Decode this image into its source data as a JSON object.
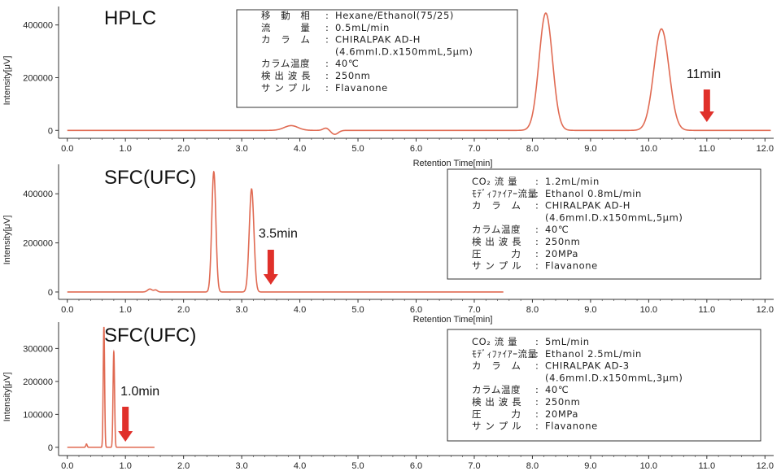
{
  "colors": {
    "trace": "#e06a52",
    "arrow": "#e0302a",
    "axis": "#333333",
    "box": "#333333"
  },
  "chart_data": [
    {
      "type": "line",
      "title": "HPLC",
      "xlabel": "Retention Time[min]",
      "ylabel": "Intensity[μV]",
      "xlim": [
        -0.15,
        12.15
      ],
      "ylim": [
        -30000,
        470000
      ],
      "xticks": [
        "0.0",
        "1.0",
        "2.0",
        "3.0",
        "4.0",
        "5.0",
        "6.0",
        "7.0",
        "8.0",
        "9.0",
        "10.0",
        "11.0",
        "12.0"
      ],
      "yticks": [
        "0",
        "200000",
        "400000"
      ],
      "baseline": 0,
      "x_end": 12.1,
      "peaks": [
        {
          "t": 3.85,
          "h": 18000,
          "w": 0.12
        },
        {
          "t": 4.45,
          "h": 9000,
          "w": 0.05
        },
        {
          "t": 4.6,
          "h": -15000,
          "w": 0.06
        },
        {
          "t": 8.23,
          "h": 445000,
          "w": 0.115
        },
        {
          "t": 10.22,
          "h": 385000,
          "w": 0.13
        }
      ],
      "annotation": {
        "text": "11min",
        "x": 11.0
      },
      "info": [
        {
          "label": "移　動　相",
          "value": "Hexane/Ethanol(75/25)"
        },
        {
          "label": "流　　　量",
          "value": "0.5mL/min"
        },
        {
          "label": "カ　ラ　ム",
          "value": "CHIRALPAK AD-H"
        },
        {
          "label": "",
          "value": "(4.6mmI.D.x150mmL,5μm)"
        },
        {
          "label": "カラム温度",
          "value": "40℃"
        },
        {
          "label": "検 出 波 長",
          "value": "250nm"
        },
        {
          "label": "サ ン プ ル",
          "value": "Flavanone"
        }
      ]
    },
    {
      "type": "line",
      "title": "SFC(UFC)",
      "xlabel": "Retention Time[min]",
      "ylabel": "Intensity[μV]",
      "xlim": [
        -0.15,
        12.15
      ],
      "ylim": [
        -30000,
        520000
      ],
      "xticks": [
        "0.0",
        "1.0",
        "2.0",
        "3.0",
        "4.0",
        "5.0",
        "6.0",
        "7.0",
        "8.0",
        "9.0",
        "10.0",
        "11.0",
        "12.0"
      ],
      "yticks": [
        "0",
        "200000",
        "400000"
      ],
      "baseline": 0,
      "x_end": 7.5,
      "peaks": [
        {
          "t": 1.42,
          "h": 12000,
          "w": 0.04
        },
        {
          "t": 1.52,
          "h": 8000,
          "w": 0.03
        },
        {
          "t": 2.52,
          "h": 490000,
          "w": 0.035
        },
        {
          "t": 3.17,
          "h": 420000,
          "w": 0.04
        }
      ],
      "annotation": {
        "text": "3.5min",
        "x": 3.5
      },
      "info": [
        {
          "label": "CO₂ 流 量",
          "value": "1.2mL/min"
        },
        {
          "label": "ﾓﾃﾞｨﾌｧｲｱｰ流量",
          "value": "Ethanol 0.8mL/min"
        },
        {
          "label": "カ　ラ　ム",
          "value": "CHIRALPAK AD-H"
        },
        {
          "label": "",
          "value": "(4.6mmI.D.x150mmL,5μm)"
        },
        {
          "label": "カラム温度",
          "value": "40℃"
        },
        {
          "label": "検 出 波 長",
          "value": "250nm"
        },
        {
          "label": "圧　　　力",
          "value": "20MPa"
        },
        {
          "label": "サ ン プ ル",
          "value": "Flavanone"
        }
      ]
    },
    {
      "type": "line",
      "title": "SFC(UFC)",
      "xlabel": "",
      "ylabel": "Intensity[μV]",
      "xlim": [
        -0.15,
        12.15
      ],
      "ylim": [
        -25000,
        380000
      ],
      "xticks": [
        "0.0",
        "1.0",
        "2.0",
        "3.0",
        "4.0",
        "5.0",
        "6.0",
        "7.0",
        "8.0",
        "9.0",
        "10.0",
        "11.0",
        "12.0"
      ],
      "yticks": [
        "0",
        "100000",
        "200000",
        "300000"
      ],
      "baseline": 0,
      "x_end": 1.5,
      "peaks": [
        {
          "t": 0.33,
          "h": 10000,
          "w": 0.012
        },
        {
          "t": 0.63,
          "h": 365000,
          "w": 0.012
        },
        {
          "t": 0.8,
          "h": 290000,
          "w": 0.013
        }
      ],
      "annotation": {
        "text": "1.0min",
        "x": 1.0
      },
      "info": [
        {
          "label": "CO₂ 流 量",
          "value": "5mL/min"
        },
        {
          "label": "ﾓﾃﾞｨﾌｧｲｱｰ流量",
          "value": "Ethanol 2.5mL/min"
        },
        {
          "label": "カ　ラ　ム",
          "value": "CHIRALPAK AD-3"
        },
        {
          "label": "",
          "value": "(4.6mmI.D.x150mmL,3μm)"
        },
        {
          "label": "カラム温度",
          "value": "40℃"
        },
        {
          "label": "検 出 波 長",
          "value": "250nm"
        },
        {
          "label": "圧　　　力",
          "value": "20MPa"
        },
        {
          "label": "サ ン プ ル",
          "value": "Flavanone"
        }
      ]
    }
  ]
}
